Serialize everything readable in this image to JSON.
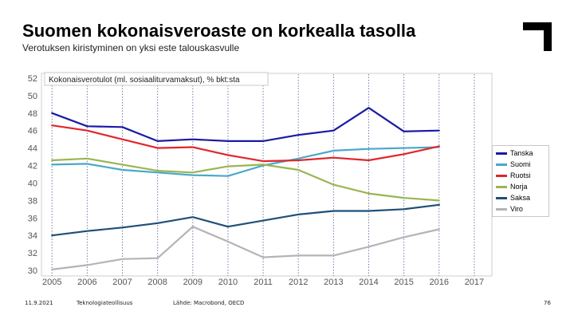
{
  "slide": {
    "title": "Suomen kokonaisveroaste on korkealla tasolla",
    "subtitle": "Verotuksen kiristyminen on yksi este talouskasvulle",
    "footer": {
      "date": "11.9.2021",
      "org": "Teknologiateollisuus",
      "source": "Lähde: Macrobond, OECD",
      "page": "76"
    },
    "logo": "corner-bracket-logo"
  },
  "chart_data": {
    "type": "line",
    "title": "Kokonaisverotulot (ml. sosiaaliturvamaksut), % bkt:sta",
    "x": [
      2005,
      2006,
      2007,
      2008,
      2009,
      2010,
      2011,
      2012,
      2013,
      2014,
      2015,
      2016
    ],
    "xticks": [
      "2005",
      "2006",
      "2007",
      "2008",
      "2009",
      "2010",
      "2011",
      "2012",
      "2013",
      "2014",
      "2015",
      "2016",
      "2017"
    ],
    "xlim": [
      2004.7,
      2017.5
    ],
    "yticks": [
      "30",
      "32",
      "34",
      "36",
      "38",
      "40",
      "42",
      "44",
      "46",
      "48",
      "50",
      "52"
    ],
    "ylim": [
      30,
      52
    ],
    "grid": "vertical-dotted",
    "legend_position": "right",
    "series": [
      {
        "name": "Tanska",
        "color": "#1a1aa6",
        "values": [
          48.0,
          46.5,
          46.4,
          44.8,
          45.0,
          44.8,
          44.8,
          45.5,
          46.0,
          48.6,
          45.9,
          46.0
        ]
      },
      {
        "name": "Suomi",
        "color": "#4aa8c8",
        "values": [
          42.1,
          42.2,
          41.5,
          41.2,
          40.9,
          40.8,
          42.0,
          42.8,
          43.7,
          43.9,
          44.0,
          44.1
        ]
      },
      {
        "name": "Ruotsi",
        "color": "#e0262b",
        "values": [
          46.6,
          46.0,
          45.0,
          44.0,
          44.1,
          43.2,
          42.5,
          42.6,
          42.9,
          42.6,
          43.3,
          44.2
        ]
      },
      {
        "name": "Norja",
        "color": "#9ab552",
        "values": [
          42.6,
          42.8,
          42.1,
          41.4,
          41.2,
          41.9,
          42.1,
          41.5,
          39.8,
          38.8,
          38.3,
          38.0
        ]
      },
      {
        "name": "Saksa",
        "color": "#1f4f78",
        "values": [
          34.0,
          34.5,
          34.9,
          35.4,
          36.1,
          35.0,
          35.7,
          36.4,
          36.8,
          36.8,
          37.0,
          37.5
        ]
      },
      {
        "name": "Viro",
        "color": "#b4b4b4",
        "values": [
          30.1,
          30.6,
          31.3,
          31.4,
          35.0,
          33.3,
          31.5,
          31.7,
          31.7,
          32.7,
          33.8,
          34.7
        ]
      }
    ]
  }
}
